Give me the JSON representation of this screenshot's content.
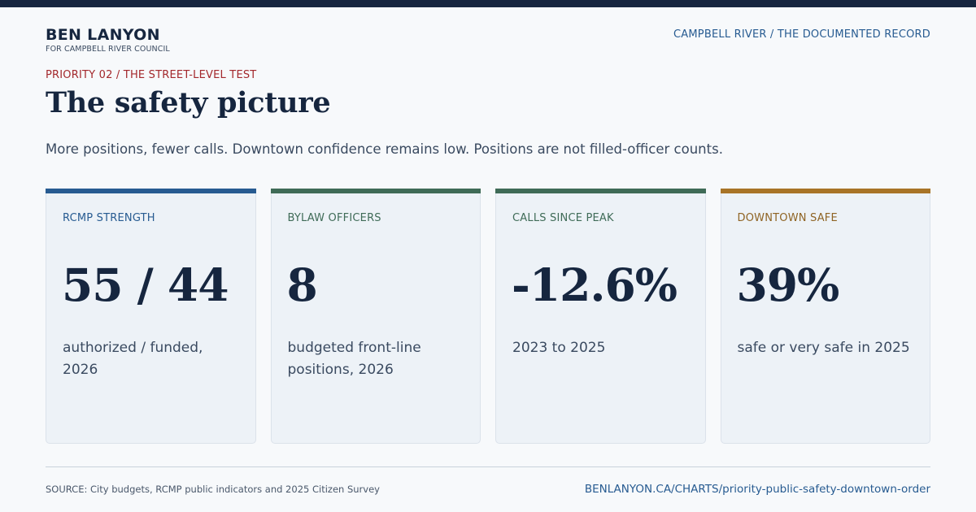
{
  "brand": {
    "name": "BEN LANYON",
    "subtitle": "FOR CAMPBELL RIVER COUNCIL"
  },
  "header_right": "CAMPBELL RIVER / THE DOCUMENTED RECORD",
  "kicker": "PRIORITY 02 / THE STREET-LEVEL TEST",
  "title": "The safety picture",
  "subtitle": "More positions, fewer calls. Downtown confidence remains low. Positions are not filled-officer counts.",
  "cards": [
    {
      "label": "RCMP STRENGTH",
      "value": "55 / 44",
      "desc": "authorized / funded, 2026",
      "color": "#275b91",
      "label_color": "#275b91"
    },
    {
      "label": "BYLAW OFFICERS",
      "value": "8",
      "desc": "budgeted front-line positions, 2026",
      "color": "#3f6b57",
      "label_color": "#3f6b57"
    },
    {
      "label": "CALLS SINCE PEAK",
      "value": "-12.6%",
      "desc": "2023 to 2025",
      "color": "#3f6b57",
      "label_color": "#3f6b57"
    },
    {
      "label": "DOWNTOWN SAFE",
      "value": "39%",
      "desc": "safe or very safe in 2025",
      "color": "#a87427",
      "label_color": "#8f6424"
    }
  ],
  "footer": {
    "source": "SOURCE: City budgets, RCMP public indicators and 2025 Citizen Survey",
    "url": "BENLANYON.CA/CHARTS/priority-public-safety-downtown-order"
  }
}
